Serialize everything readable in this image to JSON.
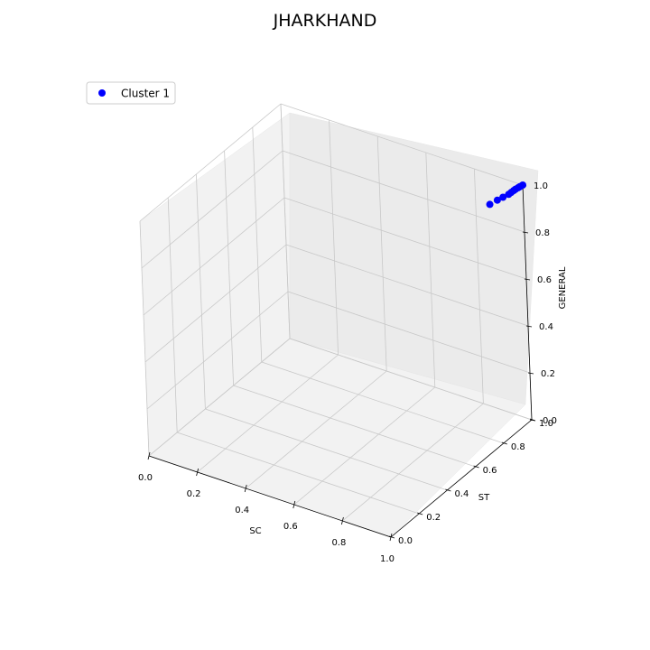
{
  "chart_data": {
    "type": "scatter",
    "title": "JHARKHAND",
    "xlabel": "SC",
    "ylabel": "ST",
    "zlabel": "GENERAL",
    "xlim": [
      0,
      1
    ],
    "ylim": [
      0,
      1
    ],
    "zlim": [
      0,
      1
    ],
    "xticks": [
      "0.0",
      "0.2",
      "0.4",
      "0.6",
      "0.8",
      "1.0"
    ],
    "yticks": [
      "0.0",
      "0.2",
      "0.4",
      "0.6",
      "0.8",
      "1.0"
    ],
    "zticks": [
      "0.0",
      "0.2",
      "0.4",
      "0.6",
      "0.8",
      "1.0"
    ],
    "grid": true,
    "legend_position": "top-left",
    "series": [
      {
        "name": "Cluster 1",
        "color": "#0000ff",
        "points": [
          {
            "x": 0.92,
            "y": 0.9,
            "z": 0.94
          },
          {
            "x": 0.94,
            "y": 0.92,
            "z": 0.955
          },
          {
            "x": 0.955,
            "y": 0.935,
            "z": 0.965
          },
          {
            "x": 0.97,
            "y": 0.95,
            "z": 0.975
          },
          {
            "x": 0.975,
            "y": 0.96,
            "z": 0.98
          },
          {
            "x": 0.98,
            "y": 0.97,
            "z": 0.985
          },
          {
            "x": 0.985,
            "y": 0.975,
            "z": 0.99
          },
          {
            "x": 0.99,
            "y": 0.985,
            "z": 0.993
          },
          {
            "x": 0.995,
            "y": 0.99,
            "z": 0.997
          },
          {
            "x": 1.0,
            "y": 1.0,
            "z": 1.0
          }
        ]
      }
    ]
  }
}
